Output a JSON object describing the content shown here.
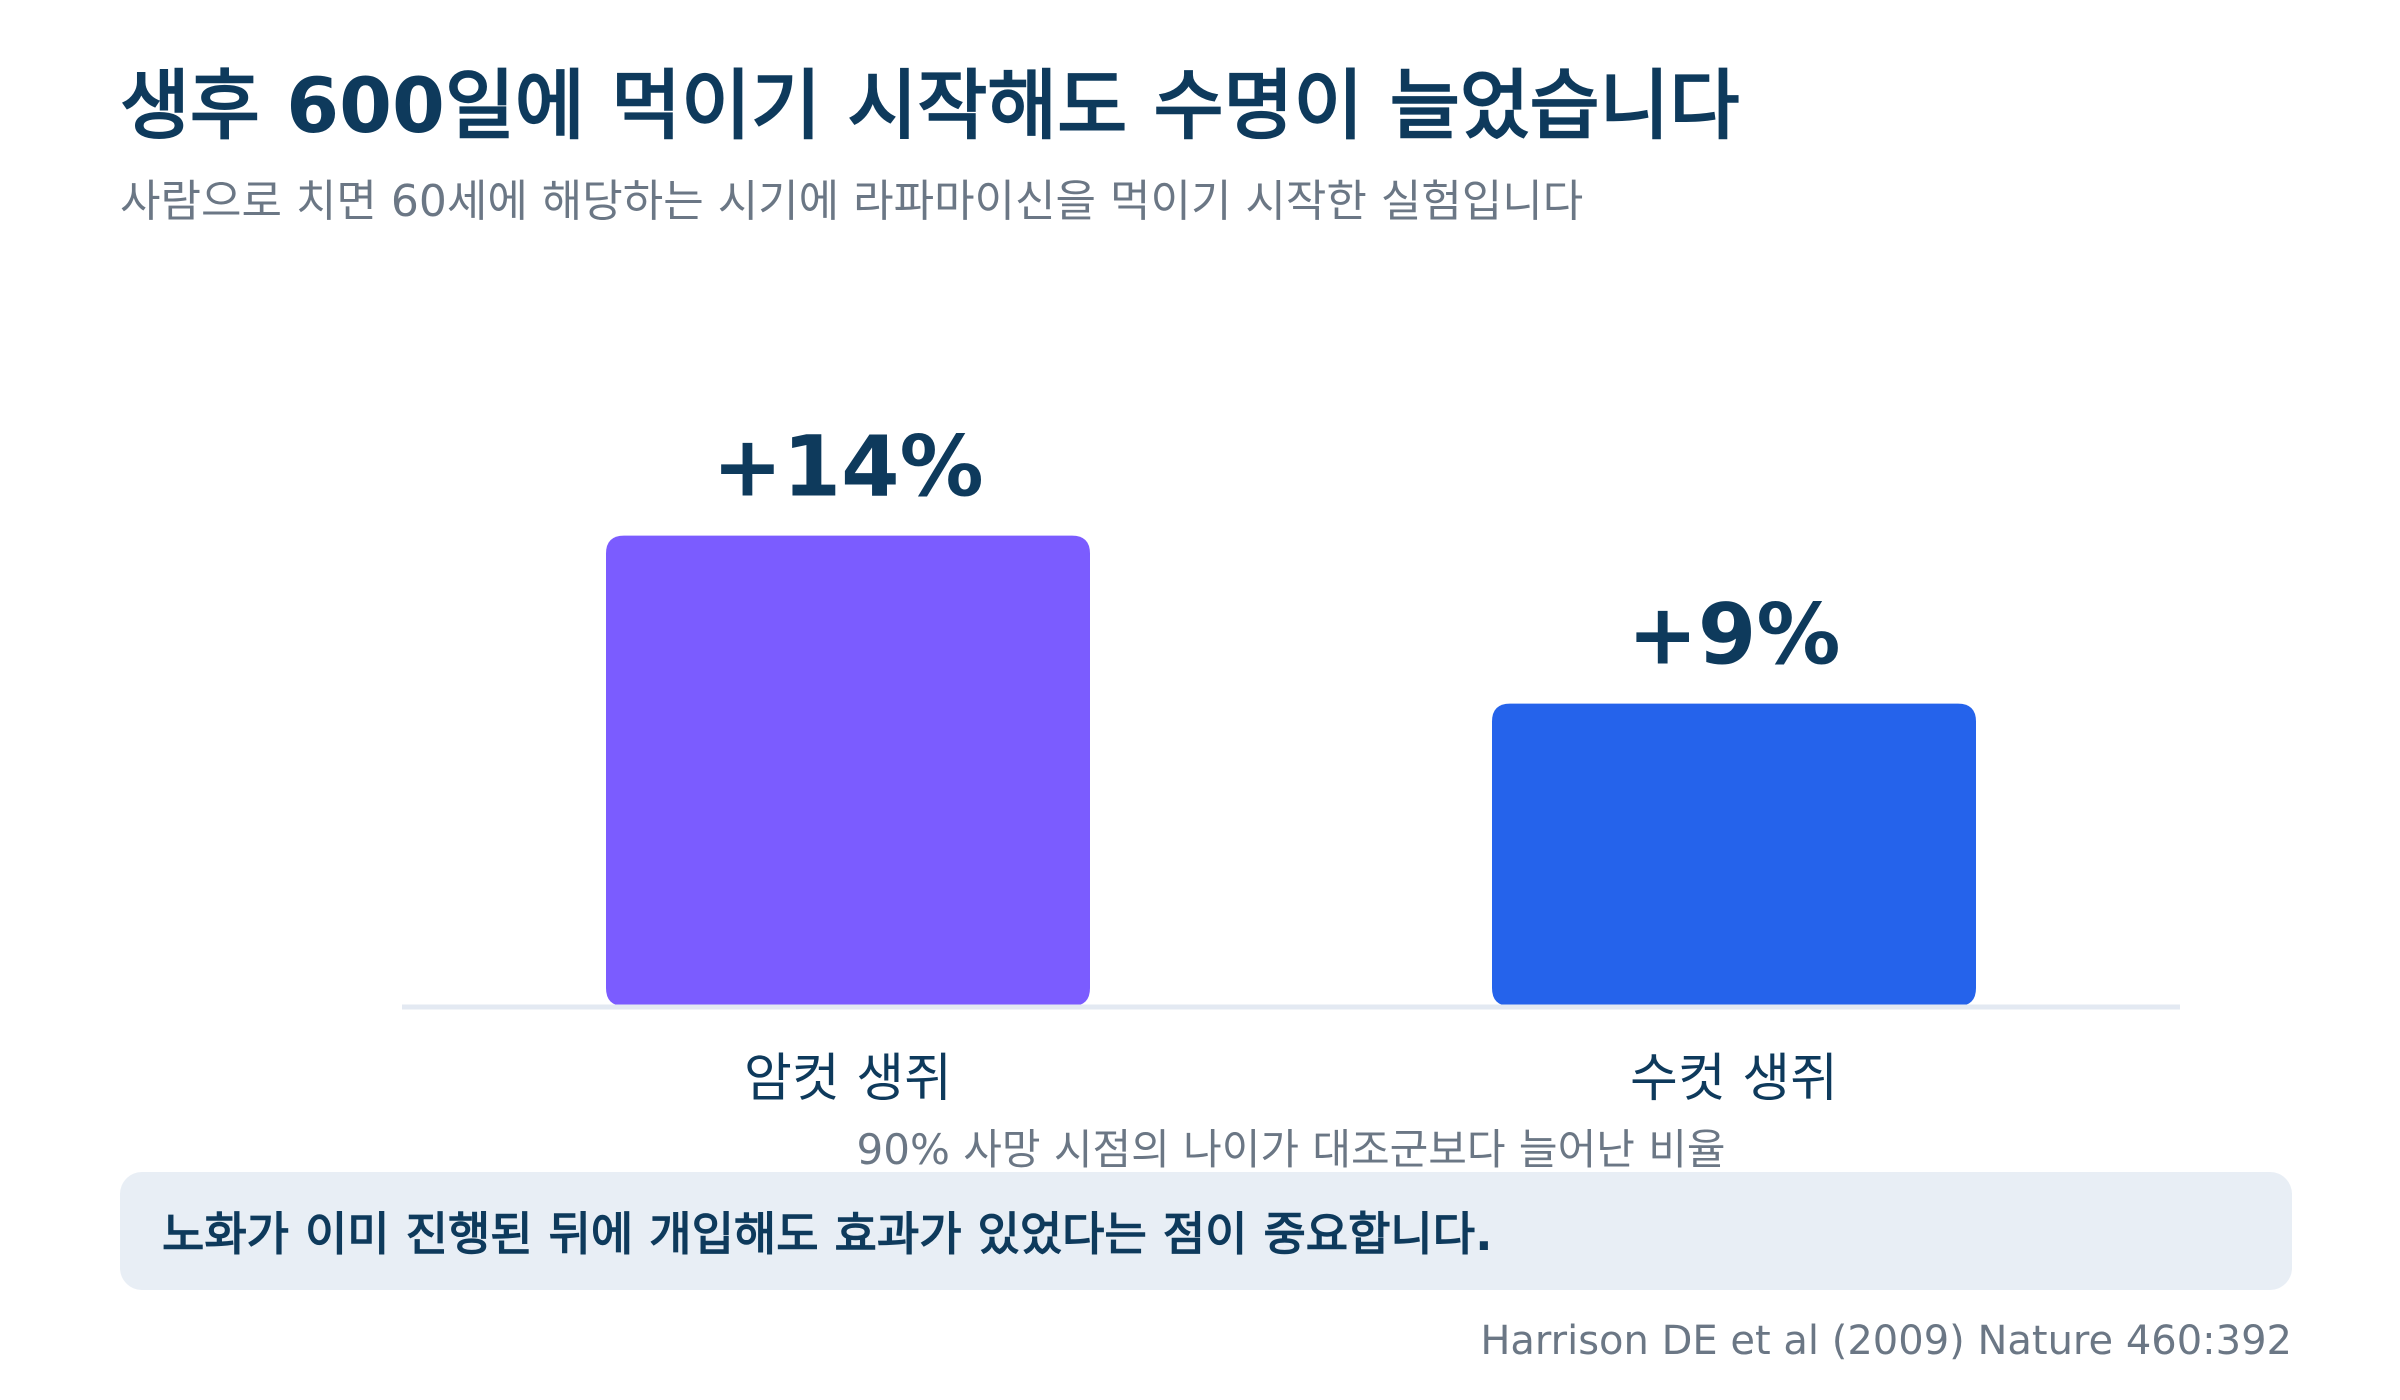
{
  "title": "생후 600일에 먹이기 시작해도 수명이 늘었습니다",
  "subtitle": "사람으로 치면 60세에 해당하는 시기에 라파마이신을 먹이기 시작한 실험입니다",
  "callout": "노화가 이미 진행된 뒤에 개입해도 효과가 있었다는 점이 중요합니다.",
  "source": "Harrison DE et al (2009) Nature 460:392",
  "chart_data": {
    "type": "bar",
    "categories": [
      "암컷 생쥐",
      "수컷 생쥐"
    ],
    "values": [
      14,
      9
    ],
    "value_labels": [
      "+14%",
      "+9%"
    ],
    "bar_colors": [
      "#7b5cff",
      "#2563eb"
    ],
    "axis_color": "#e3e9f2",
    "xlabel": "90% 사망 시점의 나이가 대조군보다 늘어난 비율",
    "ylabel": "",
    "ylim": [
      0,
      16
    ],
    "grid": false,
    "legend": "none"
  }
}
